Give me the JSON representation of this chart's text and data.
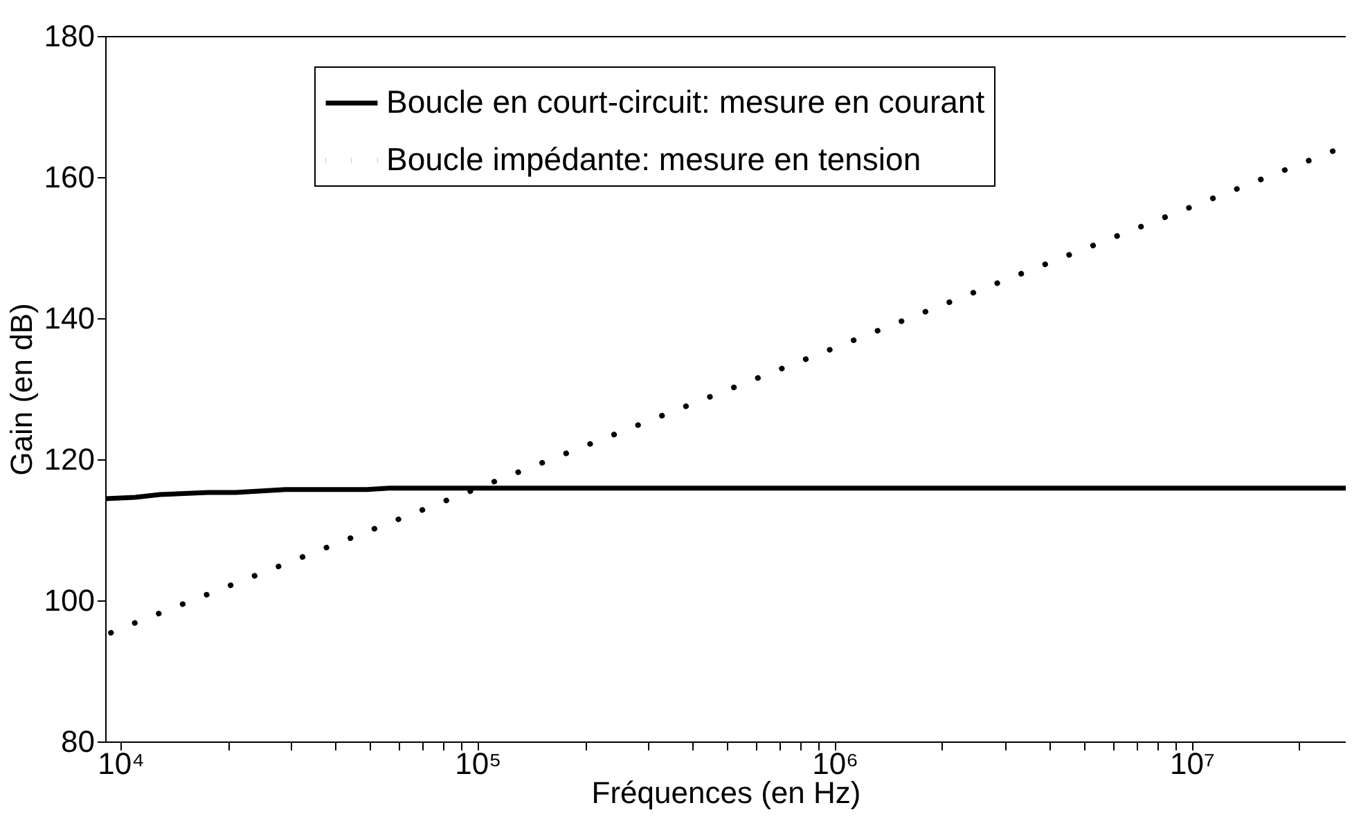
{
  "chart_data": {
    "type": "line",
    "xlabel": "Fréquences (en Hz)",
    "ylabel": "Gain (en dB)",
    "log": "x",
    "grid": false,
    "legend": "top",
    "xlim": [
      9060,
      27000000
    ],
    "ylim": [
      80,
      180
    ],
    "xticks": [
      {
        "value": 10000,
        "label": "10⁴"
      },
      {
        "value": 20000,
        "label": null
      },
      {
        "value": 30000,
        "label": null
      },
      {
        "value": 40000,
        "label": null
      },
      {
        "value": 50000,
        "label": null
      },
      {
        "value": 60000,
        "label": null
      },
      {
        "value": 70000,
        "label": null
      },
      {
        "value": 80000,
        "label": null
      },
      {
        "value": 90000,
        "label": null
      },
      {
        "value": 100000,
        "label": "10⁵"
      },
      {
        "value": 200000,
        "label": null
      },
      {
        "value": 300000,
        "label": null
      },
      {
        "value": 400000,
        "label": null
      },
      {
        "value": 500000,
        "label": null
      },
      {
        "value": 600000,
        "label": null
      },
      {
        "value": 700000,
        "label": null
      },
      {
        "value": 800000,
        "label": null
      },
      {
        "value": 900000,
        "label": null
      },
      {
        "value": 1000000,
        "label": "10⁶"
      },
      {
        "value": 2000000,
        "label": null
      },
      {
        "value": 3000000,
        "label": null
      },
      {
        "value": 4000000,
        "label": null
      },
      {
        "value": 5000000,
        "label": null
      },
      {
        "value": 6000000,
        "label": null
      },
      {
        "value": 7000000,
        "label": null
      },
      {
        "value": 8000000,
        "label": null
      },
      {
        "value": 9000000,
        "label": null
      },
      {
        "value": 10000000,
        "label": "10⁷"
      },
      {
        "value": 20000000,
        "label": null
      }
    ],
    "yticks": [
      80,
      100,
      120,
      140,
      160,
      180
    ],
    "series": [
      {
        "name": "Boucle en court-circuit: mesure en courant",
        "color": "#000000",
        "line_style": "solid",
        "x": [
          9060,
          11000,
          12900,
          17600,
          21000,
          29000,
          49000,
          56500,
          100000,
          1000000,
          10000000,
          27000000
        ],
        "values": [
          114.4,
          114.6,
          115.0,
          115.3,
          115.3,
          115.7,
          115.7,
          115.9,
          115.9,
          115.9,
          115.9,
          115.9
        ]
      },
      {
        "name": "Boucle impédante: mesure en tension",
        "color": "#000000",
        "line_style": "dotted",
        "x": [
          9400,
          10000,
          30000,
          100000,
          300000,
          1000000,
          3000000,
          10000000,
          27000000
        ],
        "values": [
          95.4,
          96.0,
          105.5,
          115.9,
          125.4,
          135.8,
          145.4,
          155.8,
          164.4
        ]
      }
    ]
  }
}
